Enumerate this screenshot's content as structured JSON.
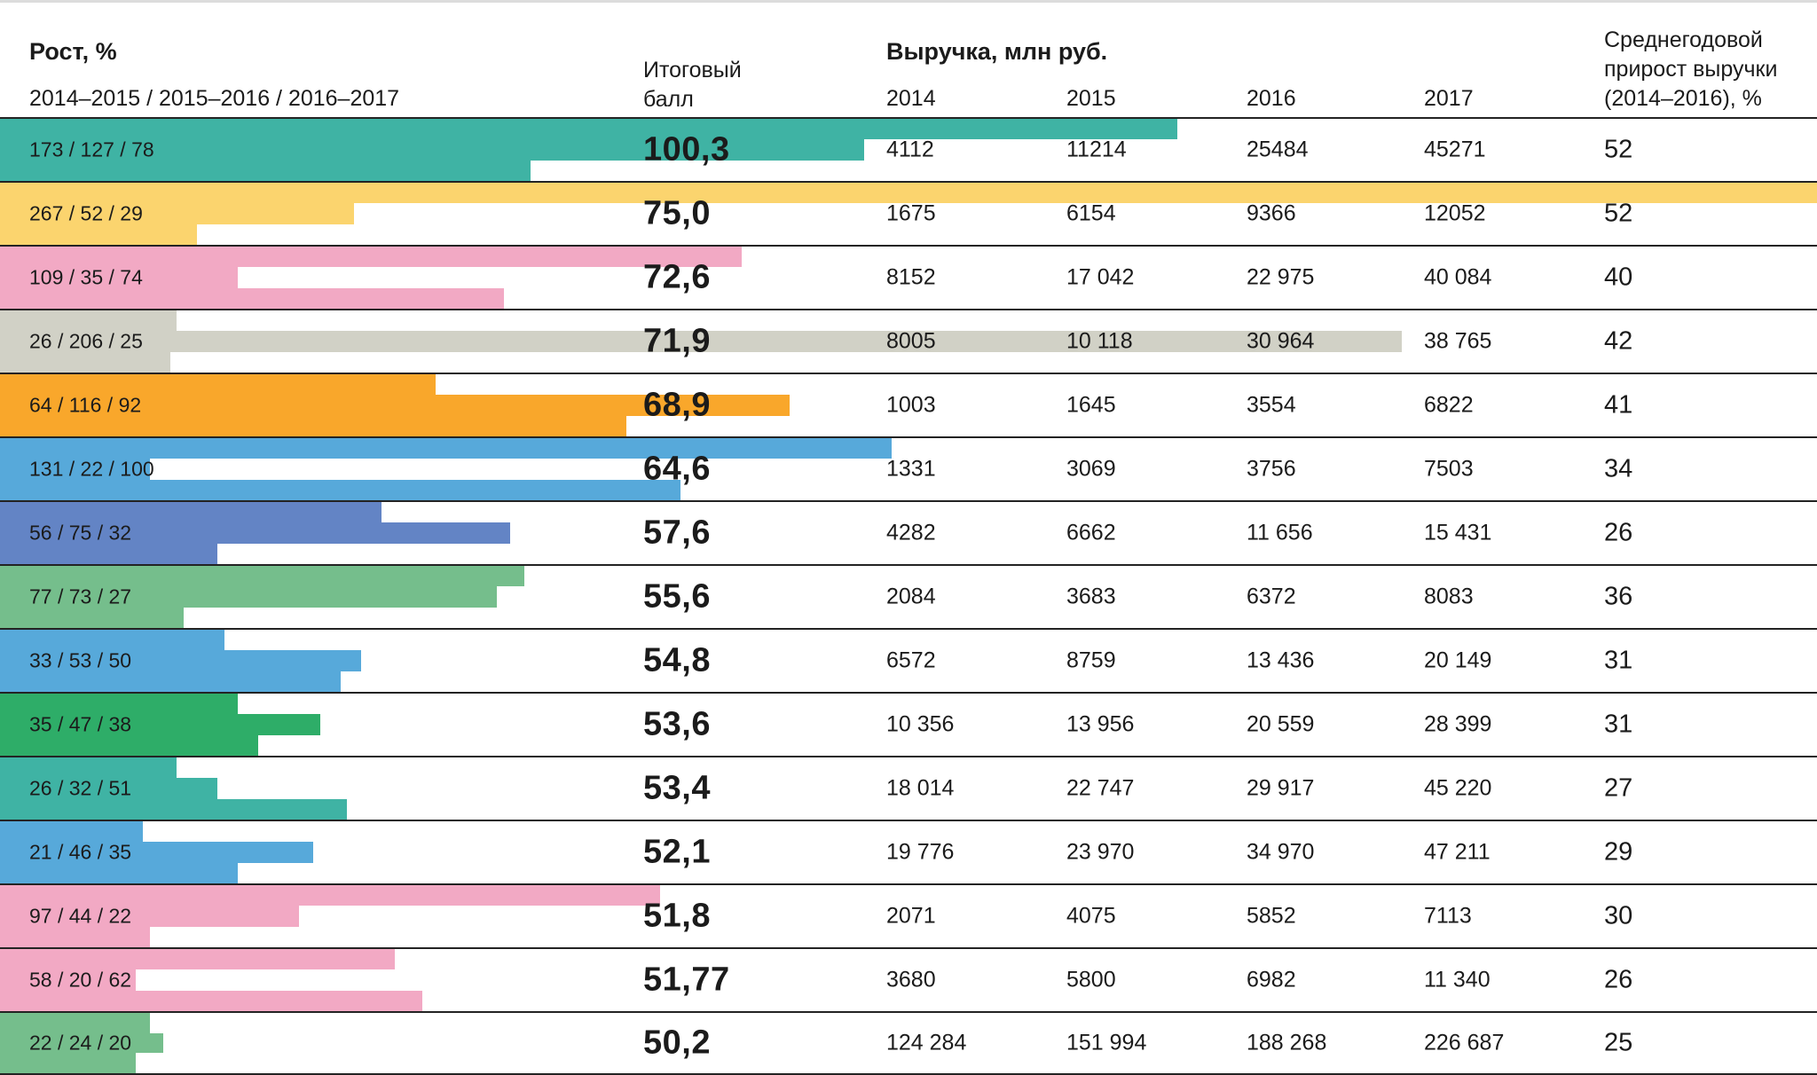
{
  "header": {
    "growth_title": "Рост, %",
    "growth_subtitle": "2014–2015 / 2015–2016 / 2016–2017",
    "score_title": "Итоговый балл",
    "revenue_title": "Выручка, млн руб.",
    "years": [
      "2014",
      "2015",
      "2016",
      "2017"
    ],
    "avg_growth_title": "Среднегодовой прирост выручки (2014–2016), %"
  },
  "chart_data": {
    "type": "bar",
    "orientation": "horizontal",
    "bar_scale_max": 267,
    "growth_periods": [
      "2014–2015",
      "2015–2016",
      "2016–2017"
    ],
    "rows": [
      {
        "growth_label": "173 / 127 / 78",
        "growth_values": [
          173,
          127,
          78
        ],
        "score": "100,3",
        "revenue": [
          "4112",
          "11214",
          "25484",
          "45271"
        ],
        "avg_growth": "52",
        "color": "#3FB3A4"
      },
      {
        "growth_label": "267 / 52 / 29",
        "growth_values": [
          267,
          52,
          29
        ],
        "score": "75,0",
        "revenue": [
          "1675",
          "6154",
          "9366",
          "12052"
        ],
        "avg_growth": "52",
        "color": "#FBD46E"
      },
      {
        "growth_label": "109 / 35 / 74",
        "growth_values": [
          109,
          35,
          74
        ],
        "score": "72,6",
        "revenue": [
          "8152",
          "17 042",
          "22 975",
          "40 084"
        ],
        "avg_growth": "40",
        "color": "#F2A9C4"
      },
      {
        "growth_label": "26 / 206 / 25",
        "growth_values": [
          26,
          206,
          25
        ],
        "score": "71,9",
        "revenue": [
          "8005",
          "10 118",
          "30 964",
          "38 765"
        ],
        "avg_growth": "42",
        "color": "#D1D1C6"
      },
      {
        "growth_label": "64 / 116 / 92",
        "growth_values": [
          64,
          116,
          92
        ],
        "score": "68,9",
        "revenue": [
          "1003",
          "1645",
          "3554",
          "6822"
        ],
        "avg_growth": "41",
        "color": "#F9A72B"
      },
      {
        "growth_label": "131 / 22 / 100",
        "growth_values": [
          131,
          22,
          100
        ],
        "score": "64,6",
        "revenue": [
          "1331",
          "3069",
          "3756",
          "7503"
        ],
        "avg_growth": "34",
        "color": "#57A9DA"
      },
      {
        "growth_label": "56 / 75 / 32",
        "growth_values": [
          56,
          75,
          32
        ],
        "score": "57,6",
        "revenue": [
          "4282",
          "6662",
          "11 656",
          "15 431"
        ],
        "avg_growth": "26",
        "color": "#6384C5"
      },
      {
        "growth_label": "77 / 73 / 27",
        "growth_values": [
          77,
          73,
          27
        ],
        "score": "55,6",
        "revenue": [
          "2084",
          "3683",
          "6372",
          "8083"
        ],
        "avg_growth": "36",
        "color": "#75BE8C"
      },
      {
        "growth_label": "33 / 53 / 50",
        "growth_values": [
          33,
          53,
          50
        ],
        "score": "54,8",
        "revenue": [
          "6572",
          "8759",
          "13 436",
          "20 149"
        ],
        "avg_growth": "31",
        "color": "#57A9DA"
      },
      {
        "growth_label": "35 / 47 / 38",
        "growth_values": [
          35,
          47,
          38
        ],
        "score": "53,6",
        "revenue": [
          "10 356",
          "13 956",
          "20 559",
          "28 399"
        ],
        "avg_growth": "31",
        "color": "#2EAD68"
      },
      {
        "growth_label": "26 / 32 / 51",
        "growth_values": [
          26,
          32,
          51
        ],
        "score": "53,4",
        "revenue": [
          "18 014",
          "22 747",
          "29 917",
          "45 220"
        ],
        "avg_growth": "27",
        "color": "#3FB3A4"
      },
      {
        "growth_label": "21 / 46 / 35",
        "growth_values": [
          21,
          46,
          35
        ],
        "score": "52,1",
        "revenue": [
          "19 776",
          "23 970",
          "34 970",
          "47 211"
        ],
        "avg_growth": "29",
        "color": "#57A9DA"
      },
      {
        "growth_label": "97 / 44 / 22",
        "growth_values": [
          97,
          44,
          22
        ],
        "score": "51,8",
        "revenue": [
          "2071",
          "4075",
          "5852",
          "7113"
        ],
        "avg_growth": "30",
        "color": "#F2A9C4"
      },
      {
        "growth_label": "58 / 20 / 62",
        "growth_values": [
          58,
          20,
          62
        ],
        "score": "51,77",
        "revenue": [
          "3680",
          "5800",
          "6982",
          "11 340"
        ],
        "avg_growth": "26",
        "color": "#F2A9C4"
      },
      {
        "growth_label": "22 / 24 / 20",
        "growth_values": [
          22,
          24,
          20
        ],
        "score": "50,2",
        "revenue": [
          "124 284",
          "151 994",
          "188 268",
          "226 687"
        ],
        "avg_growth": "25",
        "color": "#75BE8C"
      }
    ]
  }
}
